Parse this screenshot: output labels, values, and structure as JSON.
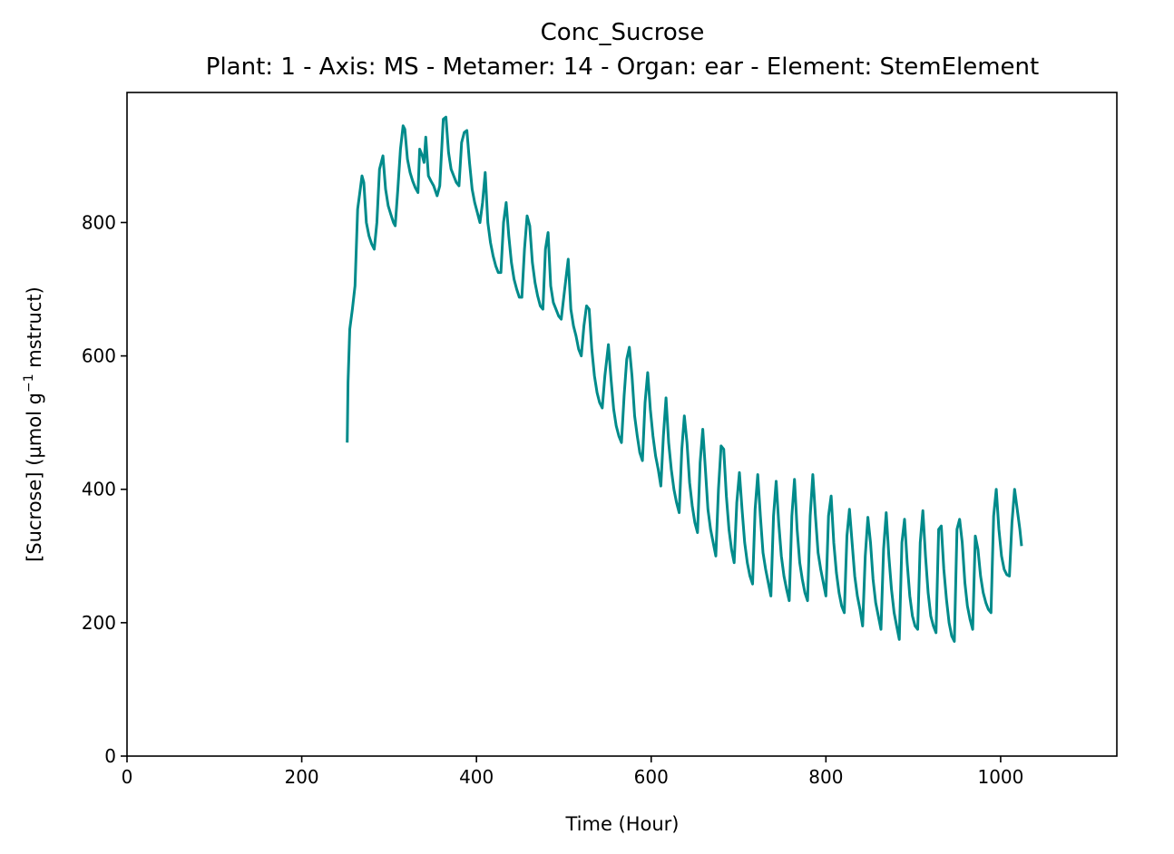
{
  "chart_data": {
    "type": "line",
    "title": "Conc_Sucrose",
    "subtitle": "Plant: 1 - Axis: MS - Metamer: 14 - Organ: ear - Element: StemElement",
    "xlabel": "Time (Hour)",
    "ylabel_prefix": "[Sucrose] (µmol g",
    "ylabel_sup": "−1",
    "ylabel_suffix": " mstruct)",
    "xlim": [
      0,
      1133
    ],
    "ylim": [
      0,
      995
    ],
    "xticks": [
      0,
      200,
      400,
      600,
      800,
      1000
    ],
    "yticks": [
      0,
      200,
      400,
      600,
      800
    ],
    "grid": false,
    "color": "#008b8b",
    "series": [
      {
        "values": [
          [
            252,
            470
          ],
          [
            253,
            560
          ],
          [
            255,
            640
          ],
          [
            258,
            670
          ],
          [
            261,
            705
          ],
          [
            264,
            820
          ],
          [
            267,
            850
          ],
          [
            269,
            870
          ],
          [
            271,
            860
          ],
          [
            274,
            800
          ],
          [
            277,
            780
          ],
          [
            280,
            768
          ],
          [
            283,
            760
          ],
          [
            286,
            800
          ],
          [
            289,
            880
          ],
          [
            293,
            900
          ],
          [
            296,
            850
          ],
          [
            299,
            825
          ],
          [
            302,
            812
          ],
          [
            305,
            800
          ],
          [
            307,
            795
          ],
          [
            310,
            850
          ],
          [
            313,
            910
          ],
          [
            316,
            945
          ],
          [
            318,
            940
          ],
          [
            321,
            895
          ],
          [
            324,
            875
          ],
          [
            327,
            862
          ],
          [
            330,
            852
          ],
          [
            333,
            845
          ],
          [
            335,
            910
          ],
          [
            338,
            900
          ],
          [
            340,
            890
          ],
          [
            342,
            928
          ],
          [
            345,
            870
          ],
          [
            348,
            862
          ],
          [
            351,
            855
          ],
          [
            355,
            840
          ],
          [
            358,
            855
          ],
          [
            362,
            955
          ],
          [
            365,
            958
          ],
          [
            368,
            905
          ],
          [
            371,
            880
          ],
          [
            374,
            870
          ],
          [
            377,
            860
          ],
          [
            380,
            855
          ],
          [
            383,
            920
          ],
          [
            386,
            935
          ],
          [
            389,
            938
          ],
          [
            392,
            890
          ],
          [
            395,
            850
          ],
          [
            398,
            830
          ],
          [
            401,
            815
          ],
          [
            404,
            800
          ],
          [
            407,
            830
          ],
          [
            410,
            875
          ],
          [
            413,
            800
          ],
          [
            416,
            770
          ],
          [
            419,
            750
          ],
          [
            422,
            735
          ],
          [
            425,
            725
          ],
          [
            428,
            725
          ],
          [
            431,
            800
          ],
          [
            434,
            830
          ],
          [
            437,
            780
          ],
          [
            440,
            740
          ],
          [
            443,
            715
          ],
          [
            446,
            700
          ],
          [
            449,
            688
          ],
          [
            452,
            688
          ],
          [
            455,
            760
          ],
          [
            458,
            810
          ],
          [
            461,
            795
          ],
          [
            464,
            740
          ],
          [
            467,
            710
          ],
          [
            470,
            690
          ],
          [
            473,
            675
          ],
          [
            476,
            670
          ],
          [
            479,
            760
          ],
          [
            482,
            785
          ],
          [
            485,
            705
          ],
          [
            488,
            680
          ],
          [
            491,
            670
          ],
          [
            494,
            660
          ],
          [
            497,
            655
          ],
          [
            501,
            700
          ],
          [
            505,
            745
          ],
          [
            508,
            670
          ],
          [
            511,
            645
          ],
          [
            514,
            630
          ],
          [
            517,
            610
          ],
          [
            520,
            600
          ],
          [
            523,
            645
          ],
          [
            526,
            675
          ],
          [
            529,
            670
          ],
          [
            532,
            610
          ],
          [
            535,
            570
          ],
          [
            538,
            545
          ],
          [
            541,
            530
          ],
          [
            544,
            522
          ],
          [
            547,
            570
          ],
          [
            551,
            617
          ],
          [
            554,
            565
          ],
          [
            557,
            520
          ],
          [
            560,
            495
          ],
          [
            563,
            480
          ],
          [
            566,
            470
          ],
          [
            569,
            540
          ],
          [
            572,
            595
          ],
          [
            575,
            613
          ],
          [
            578,
            570
          ],
          [
            581,
            510
          ],
          [
            584,
            480
          ],
          [
            587,
            455
          ],
          [
            590,
            443
          ],
          [
            593,
            530
          ],
          [
            596,
            575
          ],
          [
            599,
            520
          ],
          [
            602,
            480
          ],
          [
            605,
            450
          ],
          [
            608,
            430
          ],
          [
            611,
            405
          ],
          [
            614,
            480
          ],
          [
            617,
            537
          ],
          [
            620,
            470
          ],
          [
            623,
            430
          ],
          [
            626,
            400
          ],
          [
            629,
            380
          ],
          [
            632,
            365
          ],
          [
            635,
            460
          ],
          [
            638,
            510
          ],
          [
            641,
            470
          ],
          [
            644,
            410
          ],
          [
            647,
            375
          ],
          [
            650,
            350
          ],
          [
            653,
            335
          ],
          [
            656,
            440
          ],
          [
            659,
            490
          ],
          [
            662,
            430
          ],
          [
            665,
            370
          ],
          [
            668,
            340
          ],
          [
            671,
            320
          ],
          [
            674,
            300
          ],
          [
            677,
            400
          ],
          [
            680,
            465
          ],
          [
            683,
            460
          ],
          [
            686,
            390
          ],
          [
            689,
            340
          ],
          [
            692,
            310
          ],
          [
            695,
            290
          ],
          [
            698,
            380
          ],
          [
            701,
            425
          ],
          [
            704,
            370
          ],
          [
            707,
            320
          ],
          [
            710,
            290
          ],
          [
            713,
            270
          ],
          [
            716,
            258
          ],
          [
            719,
            370
          ],
          [
            722,
            422
          ],
          [
            725,
            360
          ],
          [
            728,
            305
          ],
          [
            731,
            280
          ],
          [
            734,
            260
          ],
          [
            737,
            240
          ],
          [
            740,
            360
          ],
          [
            743,
            412
          ],
          [
            746,
            350
          ],
          [
            749,
            300
          ],
          [
            752,
            270
          ],
          [
            755,
            250
          ],
          [
            758,
            233
          ],
          [
            761,
            360
          ],
          [
            764,
            415
          ],
          [
            767,
            340
          ],
          [
            770,
            290
          ],
          [
            773,
            265
          ],
          [
            776,
            245
          ],
          [
            779,
            233
          ],
          [
            782,
            360
          ],
          [
            785,
            422
          ],
          [
            788,
            360
          ],
          [
            791,
            305
          ],
          [
            794,
            280
          ],
          [
            797,
            260
          ],
          [
            800,
            240
          ],
          [
            803,
            360
          ],
          [
            806,
            390
          ],
          [
            809,
            320
          ],
          [
            812,
            275
          ],
          [
            815,
            245
          ],
          [
            818,
            225
          ],
          [
            821,
            215
          ],
          [
            824,
            330
          ],
          [
            827,
            370
          ],
          [
            830,
            320
          ],
          [
            833,
            270
          ],
          [
            836,
            240
          ],
          [
            839,
            220
          ],
          [
            842,
            195
          ],
          [
            845,
            300
          ],
          [
            848,
            358
          ],
          [
            851,
            320
          ],
          [
            854,
            265
          ],
          [
            857,
            230
          ],
          [
            860,
            210
          ],
          [
            863,
            190
          ],
          [
            866,
            310
          ],
          [
            869,
            365
          ],
          [
            872,
            300
          ],
          [
            875,
            250
          ],
          [
            878,
            215
          ],
          [
            881,
            195
          ],
          [
            884,
            175
          ],
          [
            887,
            320
          ],
          [
            890,
            355
          ],
          [
            893,
            290
          ],
          [
            896,
            240
          ],
          [
            899,
            210
          ],
          [
            902,
            195
          ],
          [
            905,
            190
          ],
          [
            908,
            320
          ],
          [
            911,
            368
          ],
          [
            914,
            300
          ],
          [
            917,
            245
          ],
          [
            920,
            210
          ],
          [
            923,
            195
          ],
          [
            926,
            185
          ],
          [
            929,
            340
          ],
          [
            932,
            345
          ],
          [
            935,
            280
          ],
          [
            938,
            235
          ],
          [
            941,
            200
          ],
          [
            944,
            180
          ],
          [
            947,
            172
          ],
          [
            950,
            340
          ],
          [
            953,
            355
          ],
          [
            956,
            320
          ],
          [
            959,
            260
          ],
          [
            962,
            225
          ],
          [
            965,
            205
          ],
          [
            968,
            190
          ],
          [
            971,
            330
          ],
          [
            974,
            310
          ],
          [
            977,
            270
          ],
          [
            980,
            245
          ],
          [
            983,
            230
          ],
          [
            986,
            220
          ],
          [
            989,
            215
          ],
          [
            992,
            360
          ],
          [
            995,
            400
          ],
          [
            998,
            340
          ],
          [
            1001,
            300
          ],
          [
            1004,
            280
          ],
          [
            1007,
            272
          ],
          [
            1010,
            270
          ],
          [
            1013,
            350
          ],
          [
            1016,
            400
          ],
          [
            1019,
            370
          ],
          [
            1022,
            340
          ],
          [
            1024,
            315
          ]
        ]
      }
    ]
  }
}
